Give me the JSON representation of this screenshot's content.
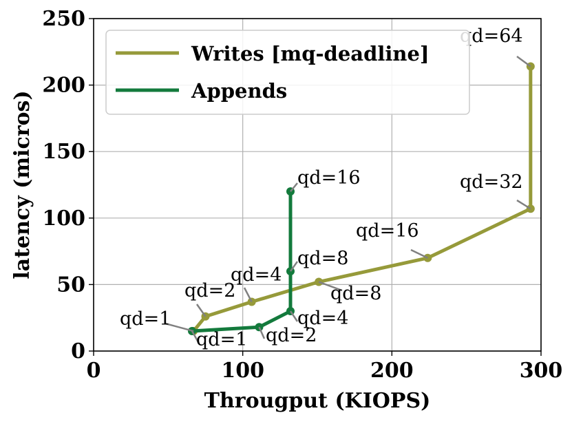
{
  "chart_data": {
    "type": "line",
    "xlabel": "Througput (KIOPS)",
    "ylabel": "latency (micros)",
    "xlim": [
      0,
      300
    ],
    "ylim": [
      0,
      250
    ],
    "xticks": [
      0,
      100,
      200,
      300
    ],
    "yticks": [
      0,
      50,
      100,
      150,
      200,
      250
    ],
    "grid": true,
    "legend_position": "top-left",
    "series": [
      {
        "name": "Writes [mq-deadline]",
        "color": "#969a3a",
        "x": [
          67,
          75,
          106,
          151,
          224,
          293,
          293
        ],
        "y": [
          15,
          26,
          37,
          52,
          70,
          107,
          214
        ],
        "labels": [
          "qd=1",
          "qd=2",
          "qd=4",
          "qd=8",
          "qd=16",
          "qd=32",
          "qd=64"
        ]
      },
      {
        "name": "Appends",
        "color": "#137a3c",
        "x": [
          66,
          111,
          132,
          132,
          132
        ],
        "y": [
          15,
          18,
          30,
          60,
          120
        ],
        "labels": [
          "qd=1",
          "qd=2",
          "qd=4",
          "qd=8",
          "qd=16"
        ]
      }
    ]
  }
}
